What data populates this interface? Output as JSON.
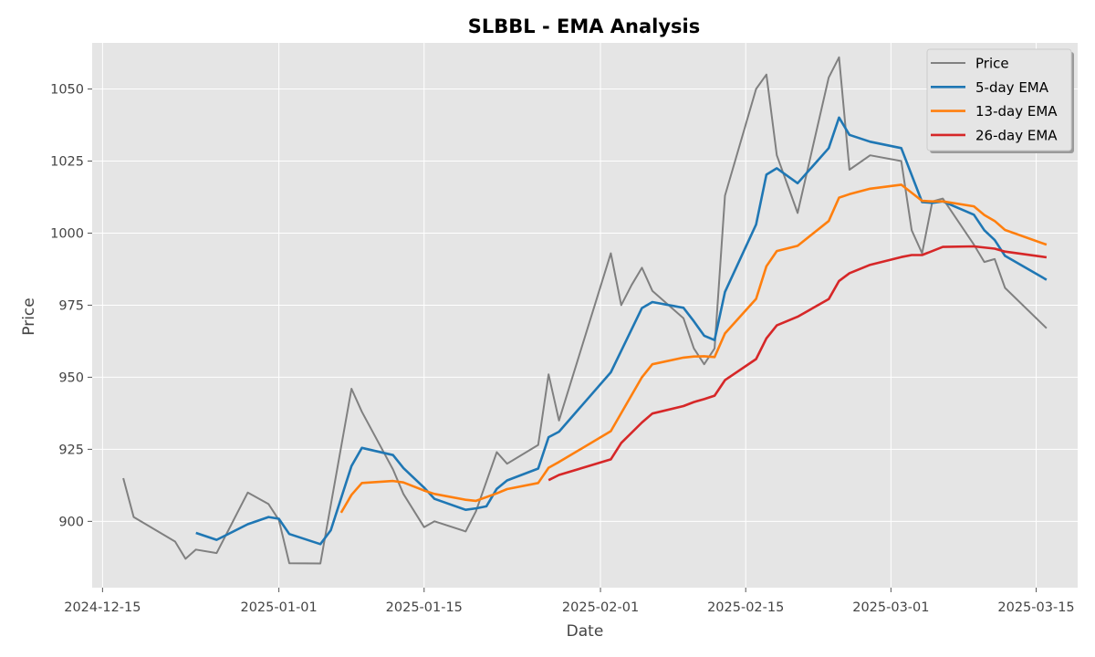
{
  "chart_data": {
    "type": "line",
    "title": "SLBBL - EMA Analysis",
    "xlabel": "Date",
    "ylabel": "Price",
    "x_axis_type": "date",
    "xlim": [
      "2024-12-14",
      "2025-03-19"
    ],
    "ylim": [
      877,
      1066
    ],
    "x_ticks": [
      "2024-12-15",
      "2025-01-01",
      "2025-01-15",
      "2025-02-01",
      "2025-02-15",
      "2025-03-01",
      "2025-03-15"
    ],
    "y_ticks": [
      900,
      925,
      950,
      975,
      1000,
      1025,
      1050
    ],
    "grid": true,
    "legend_position": "top-right",
    "series": [
      {
        "name": "Price",
        "color": "#808080",
        "points": [
          [
            "2024-12-17",
            915
          ],
          [
            "2024-12-18",
            901.5
          ],
          [
            "2024-12-22",
            893
          ],
          [
            "2024-12-23",
            887
          ],
          [
            "2024-12-24",
            890.2
          ],
          [
            "2024-12-26",
            889
          ],
          [
            "2024-12-29",
            910
          ],
          [
            "2024-12-31",
            906
          ],
          [
            "2025-01-01",
            900.5
          ],
          [
            "2025-01-02",
            885.5
          ],
          [
            "2025-01-05",
            885.4
          ],
          [
            "2025-01-08",
            946
          ],
          [
            "2025-01-09",
            938
          ],
          [
            "2025-01-12",
            918
          ],
          [
            "2025-01-13",
            909.5
          ],
          [
            "2025-01-15",
            898
          ],
          [
            "2025-01-16",
            900
          ],
          [
            "2025-01-19",
            896.5
          ],
          [
            "2025-01-20",
            903.5
          ],
          [
            "2025-01-22",
            924
          ],
          [
            "2025-01-23",
            920
          ],
          [
            "2025-01-26",
            926.5
          ],
          [
            "2025-01-27",
            951
          ],
          [
            "2025-01-28",
            935
          ],
          [
            "2025-02-02",
            993
          ],
          [
            "2025-02-03",
            975
          ],
          [
            "2025-02-04",
            982
          ],
          [
            "2025-02-05",
            988
          ],
          [
            "2025-02-06",
            980
          ],
          [
            "2025-02-09",
            970.5
          ],
          [
            "2025-02-10",
            960
          ],
          [
            "2025-02-11",
            954.5
          ],
          [
            "2025-02-12",
            960
          ],
          [
            "2025-02-13",
            1013
          ],
          [
            "2025-02-16",
            1050
          ],
          [
            "2025-02-17",
            1055
          ],
          [
            "2025-02-18",
            1027
          ],
          [
            "2025-02-20",
            1007
          ],
          [
            "2025-02-23",
            1054
          ],
          [
            "2025-02-24",
            1061
          ],
          [
            "2025-02-25",
            1022
          ],
          [
            "2025-02-27",
            1027
          ],
          [
            "2025-03-02",
            1025
          ],
          [
            "2025-03-03",
            1001
          ],
          [
            "2025-03-04",
            993
          ],
          [
            "2025-03-05",
            1011
          ],
          [
            "2025-03-06",
            1012
          ],
          [
            "2025-03-09",
            996
          ],
          [
            "2025-03-10",
            990
          ],
          [
            "2025-03-11",
            991
          ],
          [
            "2025-03-12",
            981
          ],
          [
            "2025-03-16",
            967
          ]
        ]
      },
      {
        "name": "5-day EMA",
        "color": "#1f77b4",
        "points": [
          [
            "2024-12-24",
            896
          ],
          [
            "2024-12-26",
            893.6
          ],
          [
            "2024-12-29",
            899
          ],
          [
            "2024-12-31",
            901.5
          ],
          [
            "2025-01-01",
            900.9
          ],
          [
            "2025-01-02",
            895.6
          ],
          [
            "2025-01-05",
            892.1
          ],
          [
            "2025-01-06",
            896.9
          ],
          [
            "2025-01-08",
            919.2
          ],
          [
            "2025-01-09",
            925.5
          ],
          [
            "2025-01-12",
            923
          ],
          [
            "2025-01-13",
            918.5
          ],
          [
            "2025-01-15",
            911.7
          ],
          [
            "2025-01-16",
            907.8
          ],
          [
            "2025-01-19",
            904
          ],
          [
            "2025-01-20",
            904.5
          ],
          [
            "2025-01-21",
            905.2
          ],
          [
            "2025-01-22",
            911.3
          ],
          [
            "2025-01-23",
            914.2
          ],
          [
            "2025-01-26",
            918.3
          ],
          [
            "2025-01-27",
            929.2
          ],
          [
            "2025-01-28",
            931.1
          ],
          [
            "2025-02-02",
            951.7
          ],
          [
            "2025-02-05",
            974
          ],
          [
            "2025-02-06",
            976.1
          ],
          [
            "2025-02-09",
            974.1
          ],
          [
            "2025-02-10",
            969.4
          ],
          [
            "2025-02-11",
            964.4
          ],
          [
            "2025-02-12",
            962.9
          ],
          [
            "2025-02-13",
            979.6
          ],
          [
            "2025-02-16",
            1003
          ],
          [
            "2025-02-17",
            1020.3
          ],
          [
            "2025-02-18",
            1022.5
          ],
          [
            "2025-02-20",
            1017.3
          ],
          [
            "2025-02-23",
            1029.5
          ],
          [
            "2025-02-24",
            1040.1
          ],
          [
            "2025-02-25",
            1034.1
          ],
          [
            "2025-02-27",
            1031.7
          ],
          [
            "2025-03-02",
            1029.5
          ],
          [
            "2025-03-04",
            1010.8
          ],
          [
            "2025-03-05",
            1010.5
          ],
          [
            "2025-03-06",
            1011
          ],
          [
            "2025-03-09",
            1006.4
          ],
          [
            "2025-03-10",
            1001
          ],
          [
            "2025-03-11",
            997.6
          ],
          [
            "2025-03-12",
            992.1
          ],
          [
            "2025-03-16",
            983.8
          ]
        ]
      },
      {
        "name": "13-day EMA",
        "color": "#ff7f0e",
        "points": [
          [
            "2025-01-07",
            903
          ],
          [
            "2025-01-08",
            909.2
          ],
          [
            "2025-01-09",
            913.3
          ],
          [
            "2025-01-12",
            914
          ],
          [
            "2025-01-13",
            913.5
          ],
          [
            "2025-01-15",
            910.7
          ],
          [
            "2025-01-16",
            909.5
          ],
          [
            "2025-01-19",
            907.5
          ],
          [
            "2025-01-20",
            907.1
          ],
          [
            "2025-01-22",
            909.7
          ],
          [
            "2025-01-23",
            911.2
          ],
          [
            "2025-01-26",
            913.3
          ],
          [
            "2025-01-27",
            918.6
          ],
          [
            "2025-01-28",
            920.6
          ],
          [
            "2025-02-02",
            931.3
          ],
          [
            "2025-02-05",
            950
          ],
          [
            "2025-02-06",
            954.5
          ],
          [
            "2025-02-09",
            956.8
          ],
          [
            "2025-02-10",
            957.2
          ],
          [
            "2025-02-11",
            957.3
          ],
          [
            "2025-02-12",
            957
          ],
          [
            "2025-02-13",
            965.2
          ],
          [
            "2025-02-16",
            977.2
          ],
          [
            "2025-02-17",
            988.5
          ],
          [
            "2025-02-18",
            993.8
          ],
          [
            "2025-02-20",
            995.6
          ],
          [
            "2025-02-23",
            1004.2
          ],
          [
            "2025-02-24",
            1012.3
          ],
          [
            "2025-02-25",
            1013.5
          ],
          [
            "2025-02-27",
            1015.4
          ],
          [
            "2025-03-02",
            1016.8
          ],
          [
            "2025-03-04",
            1011.2
          ],
          [
            "2025-03-05",
            1011
          ],
          [
            "2025-03-06",
            1011
          ],
          [
            "2025-03-09",
            1009.3
          ],
          [
            "2025-03-10",
            1006.3
          ],
          [
            "2025-03-11",
            1004.2
          ],
          [
            "2025-03-12",
            1001.1
          ],
          [
            "2025-03-16",
            996
          ]
        ]
      },
      {
        "name": "26-day EMA",
        "color": "#d62728",
        "points": [
          [
            "2025-01-27",
            914.3
          ],
          [
            "2025-01-28",
            916.1
          ],
          [
            "2025-02-02",
            921.5
          ],
          [
            "2025-02-03",
            927.2
          ],
          [
            "2025-02-05",
            934.3
          ],
          [
            "2025-02-06",
            937.4
          ],
          [
            "2025-02-09",
            940
          ],
          [
            "2025-02-10",
            941.4
          ],
          [
            "2025-02-11",
            942.4
          ],
          [
            "2025-02-12",
            943.6
          ],
          [
            "2025-02-13",
            949
          ],
          [
            "2025-02-16",
            956.3
          ],
          [
            "2025-02-17",
            963.5
          ],
          [
            "2025-02-18",
            968
          ],
          [
            "2025-02-20",
            971
          ],
          [
            "2025-02-23",
            977.1
          ],
          [
            "2025-02-24",
            983.4
          ],
          [
            "2025-02-25",
            986.1
          ],
          [
            "2025-02-27",
            989
          ],
          [
            "2025-03-02",
            991.7
          ],
          [
            "2025-03-03",
            992.4
          ],
          [
            "2025-03-04",
            992.4
          ],
          [
            "2025-03-06",
            995.2
          ],
          [
            "2025-03-09",
            995.4
          ],
          [
            "2025-03-11",
            994.6
          ],
          [
            "2025-03-12",
            993.6
          ],
          [
            "2025-03-16",
            991.6
          ]
        ]
      }
    ]
  }
}
